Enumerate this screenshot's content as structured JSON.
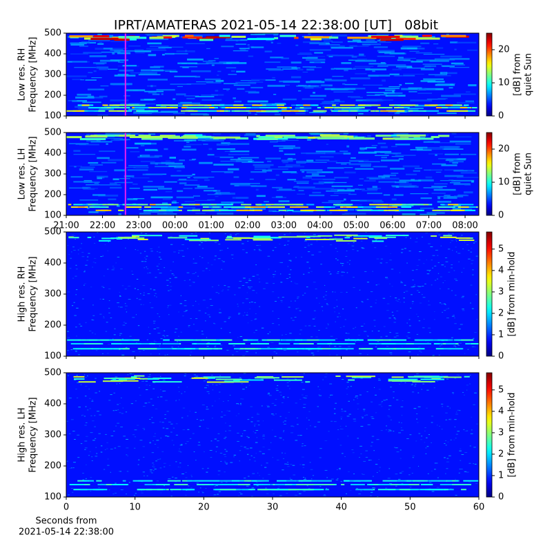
{
  "chart_data": [
    {
      "type": "heatmap",
      "title": "IPRT/AMATERAS 2021-05-14 22:38:00 [UT]   08bit",
      "ylabel": [
        "Low res. RH",
        "Frequency [MHz]"
      ],
      "ylim": [
        100,
        500
      ],
      "yticks": [
        100,
        200,
        300,
        400,
        500
      ],
      "colorbar_label": [
        "[dB] from",
        "quiet Sun"
      ],
      "clim": [
        0,
        25
      ],
      "cticks": [
        0,
        10,
        20
      ],
      "colormap": "jet",
      "marker_x": 22.633,
      "marker_color": "#e81ef0"
    },
    {
      "type": "heatmap",
      "ylabel": [
        "Low res. LH",
        "Frequency [MHz]"
      ],
      "ylim": [
        100,
        500
      ],
      "yticks": [
        100,
        200,
        300,
        400,
        500
      ],
      "colorbar_label": [
        "[dB] from",
        "quiet Sun"
      ],
      "clim": [
        0,
        25
      ],
      "cticks": [
        0,
        10,
        20
      ],
      "colormap": "jet",
      "marker_x": 22.633,
      "marker_color": "#e81ef0",
      "xlim": [
        21,
        32.38
      ],
      "xticks": [
        {
          "value": 21,
          "label": "21:00"
        },
        {
          "value": 22,
          "label": "22:00"
        },
        {
          "value": 23,
          "label": "23:00"
        },
        {
          "value": 24,
          "label": "00:00"
        },
        {
          "value": 25,
          "label": "01:00"
        },
        {
          "value": 26,
          "label": "02:00"
        },
        {
          "value": 27,
          "label": "03:00"
        },
        {
          "value": 28,
          "label": "04:00"
        },
        {
          "value": 29,
          "label": "05:00"
        },
        {
          "value": 30,
          "label": "06:00"
        },
        {
          "value": 31,
          "label": "07:00"
        },
        {
          "value": 32,
          "label": "08:00"
        }
      ]
    },
    {
      "type": "heatmap",
      "ylabel": [
        "High res. RH",
        "Frequency [MHz]"
      ],
      "ylim": [
        100,
        500
      ],
      "yticks": [
        100,
        200,
        300,
        400,
        500
      ],
      "colorbar_label": [
        "[dB] from min-hold"
      ],
      "clim": [
        0,
        5.8
      ],
      "cticks": [
        0,
        1,
        2,
        3,
        4,
        5
      ],
      "colormap": "jet"
    },
    {
      "type": "heatmap",
      "ylabel": [
        "High res. LH",
        "Frequency [MHz]"
      ],
      "ylim": [
        100,
        500
      ],
      "yticks": [
        100,
        200,
        300,
        400,
        500
      ],
      "colorbar_label": [
        "[dB] from min-hold"
      ],
      "clim": [
        0,
        5.8
      ],
      "cticks": [
        0,
        1,
        2,
        3,
        4,
        5
      ],
      "colormap": "jet",
      "xlim": [
        0,
        60
      ],
      "xticks": [
        0,
        10,
        20,
        30,
        40,
        50,
        60
      ],
      "xlabel": [
        "Seconds from",
        "2021-05-14 22:38:00"
      ]
    }
  ]
}
